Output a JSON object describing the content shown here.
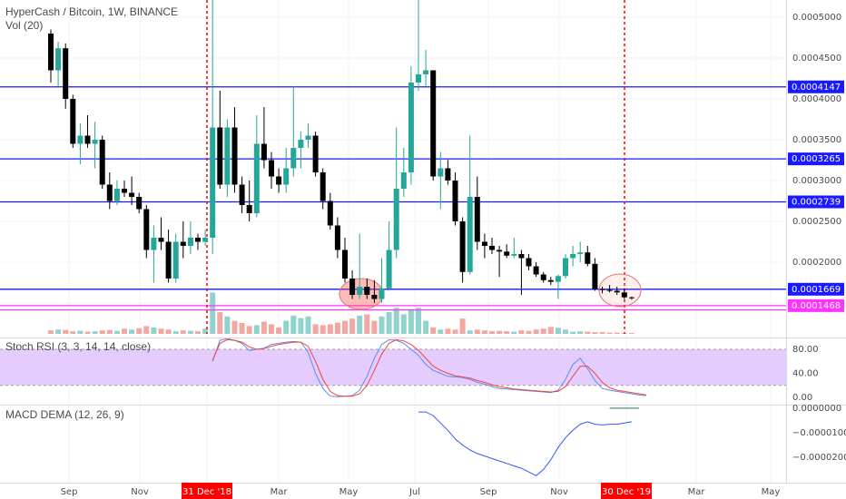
{
  "header": {
    "title": "HyperCash / Bitcoin, 1W, BINANCE",
    "volume": "Vol (20)",
    "stoch": "Stoch RSI (3, 3, 14, 14, close)",
    "macd": "MACD DEMA (12, 26, 9)"
  },
  "colors": {
    "up": "#26a69a",
    "down": "#000000",
    "vol_up": "#90d2cc",
    "vol_down": "#f2a7a2",
    "hline": "#1a1aff",
    "pink": "#ff33ff",
    "red": "#ff0000",
    "k": "#5b8def",
    "d": "#f44336",
    "macd": "#3355ff",
    "stoch_band": "#e5ccff"
  },
  "chart_data": [
    {
      "type": "candlestick",
      "name": "price",
      "x_labels": [
        "Sep",
        "Nov",
        "31 Dec '18",
        "Mar",
        "May",
        "Jul",
        "Sep",
        "Nov",
        "30 Dec '19",
        "Mar",
        "May"
      ],
      "y_ticks": [
        "0.0005000",
        "0.0004500",
        "0.0004000",
        "0.0003500",
        "0.0003000",
        "0.0002500",
        "0.0002000",
        "0.0001500"
      ],
      "ylim": [
        0.000139,
        0.000528
      ],
      "horizontal_levels": [
        "0.0004147",
        "0.0003265",
        "0.0002739",
        "0.0001669",
        "0.0001468"
      ],
      "candles": [
        [
          0.00048,
          0.000485,
          0.00042,
          0.000435
        ],
        [
          0.000435,
          0.00047,
          0.000415,
          0.000462
        ],
        [
          0.000462,
          0.000468,
          0.000388,
          0.0004
        ],
        [
          0.0004,
          0.000405,
          0.00034,
          0.000345
        ],
        [
          0.000345,
          0.00037,
          0.00032,
          0.000355
        ],
        [
          0.000355,
          0.00038,
          0.00034,
          0.000345
        ],
        [
          0.000345,
          0.000372,
          0.000315,
          0.00035
        ],
        [
          0.00035,
          0.000355,
          0.00029,
          0.000295
        ],
        [
          0.000295,
          0.00031,
          0.000265,
          0.000275
        ],
        [
          0.000275,
          0.0003,
          0.00027,
          0.00029
        ],
        [
          0.00029,
          0.0003,
          0.00028,
          0.000285
        ],
        [
          0.000285,
          0.000305,
          0.00027,
          0.00028
        ],
        [
          0.00028,
          0.000285,
          0.00026,
          0.000265
        ],
        [
          0.000265,
          0.00027,
          0.000205,
          0.000215
        ],
        [
          0.000215,
          0.000245,
          0.000175,
          0.00023
        ],
        [
          0.00023,
          0.000255,
          0.000215,
          0.000225
        ],
        [
          0.000225,
          0.00024,
          0.000175,
          0.00018
        ],
        [
          0.00018,
          0.000235,
          0.000175,
          0.000225
        ],
        [
          0.000225,
          0.00025,
          0.000205,
          0.00022
        ],
        [
          0.00022,
          0.00025,
          0.00021,
          0.00023
        ],
        [
          0.00023,
          0.000235,
          0.000215,
          0.000225
        ],
        [
          0.000225,
          0.00024,
          0.00022,
          0.00023
        ],
        [
          0.00023,
          0.000525,
          0.00021,
          0.000365
        ],
        [
          0.000365,
          0.00041,
          0.00029,
          0.000295
        ],
        [
          0.000295,
          0.000375,
          0.00028,
          0.000365
        ],
        [
          0.000365,
          0.00039,
          0.000285,
          0.000295
        ],
        [
          0.000295,
          0.000305,
          0.00026,
          0.00027
        ],
        [
          0.00027,
          0.0003,
          0.00025,
          0.00026
        ],
        [
          0.00026,
          0.00038,
          0.000255,
          0.000345
        ],
        [
          0.000345,
          0.00039,
          0.000315,
          0.000325
        ],
        [
          0.000325,
          0.000335,
          0.00029,
          0.000305
        ],
        [
          0.000305,
          0.000315,
          0.000285,
          0.000295
        ],
        [
          0.000295,
          0.00034,
          0.000285,
          0.000315
        ],
        [
          0.000315,
          0.000415,
          0.000305,
          0.00034
        ],
        [
          0.00034,
          0.00036,
          0.000315,
          0.00035
        ],
        [
          0.00035,
          0.00037,
          0.00034,
          0.000355
        ],
        [
          0.000355,
          0.00036,
          0.000305,
          0.00031
        ],
        [
          0.00031,
          0.000315,
          0.000265,
          0.000275
        ],
        [
          0.000275,
          0.000285,
          0.00024,
          0.000245
        ],
        [
          0.000245,
          0.000255,
          0.000205,
          0.000215
        ],
        [
          0.000215,
          0.00023,
          0.000175,
          0.00018
        ],
        [
          0.00018,
          0.00019,
          0.000155,
          0.00016
        ],
        [
          0.00016,
          0.000235,
          0.000155,
          0.00017
        ],
        [
          0.00017,
          0.00018,
          0.000155,
          0.00016
        ],
        [
          0.00016,
          0.000178,
          0.00015,
          0.000155
        ],
        [
          0.000155,
          0.000205,
          0.00015,
          0.000168
        ],
        [
          0.000168,
          0.00025,
          0.000165,
          0.000215
        ],
        [
          0.000215,
          0.000365,
          0.000205,
          0.00029
        ],
        [
          0.00029,
          0.00034,
          0.00028,
          0.00031
        ],
        [
          0.00031,
          0.00044,
          0.000295,
          0.00042
        ],
        [
          0.00042,
          0.00053,
          0.00041,
          0.00043
        ],
        [
          0.00043,
          0.00046,
          0.000415,
          0.000435
        ],
        [
          0.000435,
          0.000435,
          0.0003,
          0.000305
        ],
        [
          0.000305,
          0.000335,
          0.000265,
          0.000315
        ],
        [
          0.000315,
          0.000325,
          0.000295,
          0.0003
        ],
        [
          0.0003,
          0.00031,
          0.000245,
          0.00025
        ],
        [
          0.00025,
          0.000255,
          0.000175,
          0.000188
        ],
        [
          0.000188,
          0.000355,
          0.000185,
          0.00028
        ],
        [
          0.00028,
          0.000305,
          0.000215,
          0.000225
        ],
        [
          0.000225,
          0.000235,
          0.000205,
          0.00022
        ],
        [
          0.00022,
          0.00023,
          0.00021,
          0.000215
        ],
        [
          0.000215,
          0.00022,
          0.000182,
          0.000213
        ],
        [
          0.000213,
          0.000222,
          0.000205,
          0.000208
        ],
        [
          0.000208,
          0.00023,
          0.000205,
          0.00021
        ],
        [
          0.00021,
          0.000215,
          0.00016,
          0.000205
        ],
        [
          0.000205,
          0.00021,
          0.00019,
          0.000195
        ],
        [
          0.000195,
          0.0002,
          0.000182,
          0.000185
        ],
        [
          0.000185,
          0.000188,
          0.000175,
          0.000178
        ],
        [
          0.000178,
          0.000182,
          0.000172,
          0.000176
        ],
        [
          0.000176,
          0.000185,
          0.000155,
          0.000183
        ],
        [
          0.000183,
          0.00021,
          0.00018,
          0.000205
        ],
        [
          0.000205,
          0.00022,
          0.000195,
          0.00021
        ],
        [
          0.00021,
          0.000225,
          0.0002,
          0.000212
        ],
        [
          0.000212,
          0.00022,
          0.000195,
          0.000198
        ],
        [
          0.000198,
          0.000205,
          0.000165,
          0.000167
        ],
        [
          0.000167,
          0.00017,
          0.000162,
          0.000166
        ],
        [
          0.000166,
          0.000172,
          0.000163,
          0.000165
        ],
        [
          0.000165,
          0.00017,
          0.00016,
          0.000163
        ],
        [
          0.000163,
          0.000168,
          0.000155,
          0.000157
        ],
        [
          0.000157,
          0.000158,
          0.000154,
          0.000156
        ]
      ],
      "volume_up": [
        0,
        1,
        0,
        0,
        1,
        0,
        1,
        0,
        0,
        1,
        0,
        1,
        0,
        0,
        1,
        0,
        0,
        1,
        0,
        1,
        0,
        1,
        1,
        0,
        1,
        0,
        0,
        0,
        1,
        0,
        0,
        0,
        1,
        1,
        1,
        1,
        0,
        0,
        0,
        0,
        0,
        0,
        1,
        0,
        0,
        1,
        1,
        1,
        1,
        1,
        1,
        1,
        0,
        1,
        0,
        0,
        0,
        1,
        0,
        0,
        0,
        0,
        0,
        1,
        0,
        0,
        0,
        0,
        0,
        1,
        1,
        1,
        1,
        0,
        0,
        0,
        0,
        0,
        0,
        0
      ],
      "volume": [
        0.08,
        0.1,
        0.09,
        0.06,
        0.07,
        0.05,
        0.06,
        0.08,
        0.09,
        0.07,
        0.12,
        0.1,
        0.13,
        0.18,
        0.15,
        0.12,
        0.1,
        0.06,
        0.08,
        0.07,
        0.06,
        0.12,
        0.95,
        0.5,
        0.4,
        0.3,
        0.25,
        0.18,
        0.2,
        0.28,
        0.22,
        0.15,
        0.3,
        0.42,
        0.36,
        0.4,
        0.22,
        0.2,
        0.22,
        0.26,
        0.3,
        0.35,
        0.42,
        0.45,
        0.3,
        0.4,
        0.5,
        0.6,
        0.45,
        0.55,
        0.6,
        0.3,
        0.15,
        0.1,
        0.12,
        0.1,
        0.35,
        0.08,
        0.1,
        0.08,
        0.06,
        0.07,
        0.06,
        0.05,
        0.08,
        0.07,
        0.1,
        0.12,
        0.16,
        0.14,
        0.1,
        0.05,
        0.06,
        0.05,
        0.04,
        0.04,
        0.03,
        0.03,
        0.02,
        0.02
      ]
    },
    {
      "type": "line",
      "name": "stoch_rsi",
      "title": "Stoch RSI (3, 3, 14, 14, close)",
      "y_ticks": [
        "80.00",
        "40.00",
        "0.00"
      ],
      "ylim": [
        -4,
        100
      ],
      "bands": [
        20,
        80
      ],
      "series": [
        {
          "x_start": 22,
          "values": [
            60,
            95,
            98,
            95,
            90,
            78,
            80,
            82,
            88,
            90,
            92,
            93,
            92,
            75,
            40,
            15,
            2,
            1,
            2,
            3,
            12,
            35,
            65,
            88,
            96,
            95,
            90,
            80,
            70,
            55,
            45,
            40,
            35,
            34,
            33,
            30,
            25,
            22,
            18,
            15,
            14,
            13,
            12,
            11,
            10,
            9,
            8,
            12,
            30,
            55,
            65,
            48,
            28,
            15,
            12,
            10,
            8,
            6,
            4,
            3
          ]
        },
        {
          "x_start": 22,
          "values": [
            62,
            90,
            96,
            95,
            92,
            84,
            80,
            81,
            85,
            88,
            90,
            92,
            92,
            85,
            60,
            30,
            10,
            3,
            2,
            2,
            6,
            20,
            45,
            72,
            90,
            96,
            94,
            88,
            78,
            65,
            52,
            45,
            40,
            36,
            34,
            32,
            28,
            25,
            21,
            18,
            16,
            14,
            13,
            12,
            11,
            10,
            9,
            10,
            18,
            35,
            52,
            52,
            40,
            25,
            16,
            12,
            10,
            8,
            6,
            4
          ]
        }
      ]
    },
    {
      "type": "line",
      "name": "macd_dema",
      "title": "MACD DEMA (12, 26, 9)",
      "y_ticks": [
        "0.0000000",
        "−0.0000100",
        "−0.0000200"
      ],
      "ylim": [
        -2.85e-05,
        1.5e-06
      ],
      "series": [
        {
          "x_start": 50,
          "values": [
            -1.5e-06,
            -1.5e-06,
            -3e-06,
            -6e-06,
            -9e-06,
            -1.25e-05,
            -1.5e-05,
            -1.7e-05,
            -1.85e-05,
            -1.95e-05,
            -2.05e-05,
            -2.15e-05,
            -2.25e-05,
            -2.35e-05,
            -2.45e-05,
            -2.6e-05,
            -2.75e-05,
            -2.5e-05,
            -2.1e-05,
            -1.6e-05,
            -1.2e-05,
            -9e-06,
            -6.5e-06,
            -5.5e-06,
            -6.5e-06,
            -6.8e-06,
            -6.5e-06,
            -6.5e-06,
            -6e-06,
            -5.5e-06
          ]
        },
        {
          "x_start": 76,
          "values": [
            1e-07,
            1e-07,
            1e-07,
            1e-07,
            1e-07
          ]
        },
        {
          "x_start": 76,
          "values": [
            0.0,
            0.0,
            0.0,
            0.0,
            0.0
          ]
        }
      ]
    }
  ]
}
